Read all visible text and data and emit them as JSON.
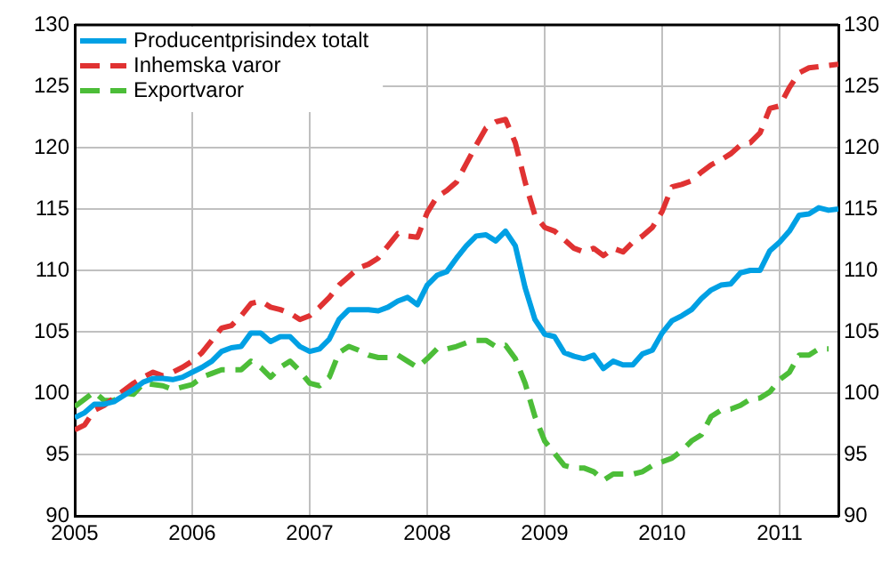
{
  "chart_data": {
    "type": "line",
    "x": [
      "2005-01",
      "2005-02",
      "2005-03",
      "2005-04",
      "2005-05",
      "2005-06",
      "2005-07",
      "2005-08",
      "2005-09",
      "2005-10",
      "2005-11",
      "2005-12",
      "2006-01",
      "2006-02",
      "2006-03",
      "2006-04",
      "2006-05",
      "2006-06",
      "2006-07",
      "2006-08",
      "2006-09",
      "2006-10",
      "2006-11",
      "2006-12",
      "2007-01",
      "2007-02",
      "2007-03",
      "2007-04",
      "2007-05",
      "2007-06",
      "2007-07",
      "2007-08",
      "2007-09",
      "2007-10",
      "2007-11",
      "2007-12",
      "2008-01",
      "2008-02",
      "2008-03",
      "2008-04",
      "2008-05",
      "2008-06",
      "2008-07",
      "2008-08",
      "2008-09",
      "2008-10",
      "2008-11",
      "2008-12",
      "2009-01",
      "2009-02",
      "2009-03",
      "2009-04",
      "2009-05",
      "2009-06",
      "2009-07",
      "2009-08",
      "2009-09",
      "2009-10",
      "2009-11",
      "2009-12",
      "2010-01",
      "2010-02",
      "2010-03",
      "2010-04",
      "2010-05",
      "2010-06",
      "2010-07",
      "2010-08",
      "2010-09",
      "2010-10",
      "2010-11",
      "2010-12",
      "2011-01",
      "2011-02",
      "2011-03",
      "2011-04",
      "2011-05",
      "2011-06",
      "2011-07"
    ],
    "series": [
      {
        "name": "Producentprisindex totalt",
        "color": "#00a0e4",
        "line_style": "solid",
        "values": [
          98.0,
          98.4,
          99.1,
          99.1,
          99.3,
          99.8,
          100.3,
          100.9,
          101.2,
          101.2,
          101.1,
          101.3,
          101.7,
          102.1,
          102.6,
          103.4,
          103.7,
          103.8,
          104.9,
          104.9,
          104.2,
          104.6,
          104.6,
          103.8,
          103.4,
          103.6,
          104.4,
          106.0,
          106.8,
          106.8,
          106.8,
          106.7,
          107.0,
          107.5,
          107.8,
          107.2,
          108.8,
          109.6,
          109.9,
          111.0,
          112.0,
          112.8,
          112.9,
          112.4,
          113.2,
          112.0,
          108.6,
          106.0,
          104.8,
          104.6,
          103.3,
          103.0,
          102.8,
          103.1,
          102.0,
          102.6,
          102.3,
          102.3,
          103.2,
          103.5,
          104.9,
          105.9,
          106.3,
          106.8,
          107.7,
          108.4,
          108.8,
          108.9,
          109.8,
          110.0,
          110.0,
          111.6,
          112.3,
          113.2,
          114.5,
          114.6,
          115.1,
          114.9,
          115.0
        ]
      },
      {
        "name": "Inhemska varor",
        "color": "#e03232",
        "line_style": "dashed",
        "values": [
          97.0,
          97.4,
          98.6,
          99.0,
          99.6,
          100.2,
          100.8,
          101.3,
          101.7,
          101.4,
          101.7,
          102.1,
          102.6,
          103.3,
          104.3,
          105.3,
          105.5,
          106.3,
          107.3,
          107.5,
          107.0,
          106.8,
          106.5,
          106.0,
          106.3,
          107.0,
          107.8,
          108.8,
          109.5,
          110.2,
          110.5,
          111.0,
          112.0,
          113.0,
          112.8,
          112.7,
          114.7,
          116.0,
          116.5,
          117.2,
          118.7,
          120.2,
          121.6,
          122.1,
          122.3,
          120.4,
          117.2,
          114.5,
          113.5,
          113.2,
          112.5,
          111.8,
          111.5,
          111.8,
          111.2,
          111.8,
          111.5,
          112.3,
          112.8,
          113.5,
          114.8,
          116.8,
          117.0,
          117.3,
          118.0,
          118.6,
          119.0,
          119.5,
          120.2,
          120.4,
          121.2,
          123.2,
          123.4,
          124.9,
          126.1,
          126.5,
          126.6,
          126.7,
          126.8
        ]
      },
      {
        "name": "Exportvaror",
        "color": "#4cbd38",
        "line_style": "dashed",
        "values": [
          98.9,
          99.5,
          100.1,
          99.4,
          99.4,
          100.0,
          99.9,
          100.8,
          100.7,
          100.6,
          100.3,
          100.5,
          100.7,
          101.3,
          101.6,
          101.9,
          101.9,
          101.9,
          102.6,
          102.1,
          101.3,
          102.1,
          102.6,
          101.8,
          100.8,
          100.6,
          101.3,
          103.3,
          103.8,
          103.5,
          103.1,
          102.9,
          102.9,
          103.1,
          102.6,
          102.1,
          102.8,
          103.6,
          103.6,
          103.8,
          104.1,
          104.3,
          104.3,
          103.8,
          103.9,
          102.8,
          100.8,
          98.1,
          96.1,
          95.1,
          94.1,
          93.9,
          93.9,
          93.6,
          92.9,
          93.4,
          93.4,
          93.4,
          93.6,
          94.1,
          94.4,
          94.7,
          95.3,
          96.1,
          96.6,
          98.1,
          98.6,
          98.7,
          99.0,
          99.5,
          99.6,
          100.1,
          101.1,
          101.7,
          103.1,
          103.1,
          103.6,
          103.6,
          null
        ]
      }
    ],
    "xlim": [
      "2005-01",
      "2011-07"
    ],
    "xticks": [
      "2005",
      "2006",
      "2007",
      "2008",
      "2009",
      "2010",
      "2011"
    ],
    "ylim": [
      90,
      130
    ],
    "yticks": [
      90,
      95,
      100,
      105,
      110,
      115,
      120,
      125,
      130
    ],
    "y2lim": [
      90,
      130
    ],
    "y2ticks": [
      90,
      95,
      100,
      105,
      110,
      115,
      120,
      125,
      130
    ],
    "grid": true,
    "legend": "top left",
    "marker": "none"
  }
}
